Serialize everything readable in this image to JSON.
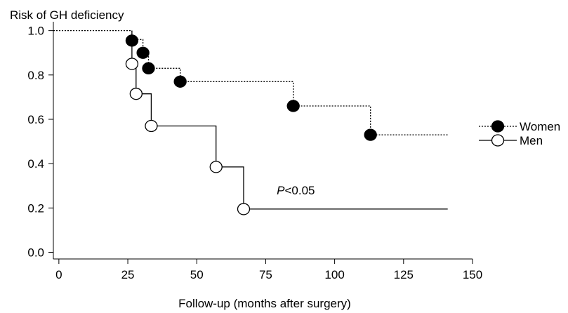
{
  "chart_data": {
    "type": "line",
    "title": "Risk of GH deficiency",
    "xlabel": "Follow-up (months after surgery)",
    "ylabel": "",
    "xlim": [
      -2,
      150
    ],
    "ylim": [
      -0.03,
      1.04
    ],
    "xticks": [
      0,
      25,
      50,
      75,
      100,
      125,
      150
    ],
    "xtick_labels": [
      "0",
      "25",
      "50",
      "75",
      "100",
      "125",
      "150"
    ],
    "yticks": [
      0.0,
      0.2,
      0.4,
      0.6,
      0.8,
      1.0
    ],
    "ytick_labels": [
      "0.0",
      "0.2",
      "0.4",
      "0.6",
      "0.8",
      "1.0"
    ],
    "grid": false,
    "legend_position": "right",
    "annotation": {
      "italic": "P",
      "rest": "<0.05",
      "x": 79,
      "y": 0.28
    },
    "series": [
      {
        "name": "Women",
        "style": "dotted",
        "marker": "filled-circle",
        "color": "#000000",
        "step_x": [
          -2,
          26.5,
          26.5,
          30.5,
          30.5,
          32.5,
          32.5,
          44,
          44,
          85,
          85,
          113,
          113,
          141
        ],
        "step_y": [
          1.0,
          1.0,
          0.96,
          0.96,
          0.9,
          0.9,
          0.83,
          0.83,
          0.77,
          0.77,
          0.66,
          0.66,
          0.53,
          0.53
        ],
        "points": [
          {
            "x": 26.5,
            "y": 0.955
          },
          {
            "x": 30.5,
            "y": 0.9
          },
          {
            "x": 32.5,
            "y": 0.83
          },
          {
            "x": 44,
            "y": 0.77
          },
          {
            "x": 85,
            "y": 0.66
          },
          {
            "x": 113,
            "y": 0.53
          }
        ]
      },
      {
        "name": "Men",
        "style": "solid",
        "marker": "open-circle",
        "color": "#000000",
        "step_x": [
          26.5,
          26.5,
          28,
          28,
          33.5,
          33.5,
          57,
          57,
          67,
          67,
          141
        ],
        "step_y": [
          1.0,
          0.85,
          0.85,
          0.715,
          0.715,
          0.57,
          0.57,
          0.385,
          0.385,
          0.195,
          0.195
        ],
        "points": [
          {
            "x": 26.5,
            "y": 0.85
          },
          {
            "x": 28,
            "y": 0.715
          },
          {
            "x": 33.5,
            "y": 0.57
          },
          {
            "x": 57,
            "y": 0.385
          },
          {
            "x": 67,
            "y": 0.195
          }
        ]
      }
    ]
  }
}
